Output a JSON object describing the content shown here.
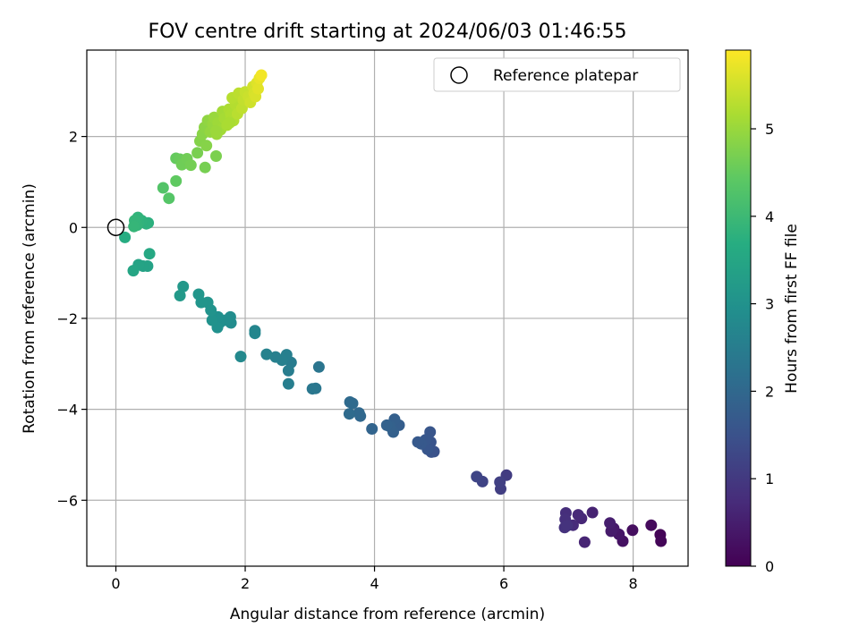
{
  "chart_data": {
    "type": "scatter",
    "title": "FOV centre drift starting at 2024/06/03 01:46:55",
    "xlabel": "Angular distance from reference (arcmin)",
    "ylabel": "Rotation from reference (arcmin)",
    "xlim": [
      -0.45,
      8.85
    ],
    "ylim": [
      -7.45,
      3.9
    ],
    "xticks": [
      0,
      2,
      4,
      6,
      8
    ],
    "yticks": [
      -6,
      -4,
      -2,
      0,
      2
    ],
    "xtick_labels": [
      "0",
      "2",
      "4",
      "6",
      "8"
    ],
    "ytick_labels": [
      "−6",
      "−4",
      "−2",
      "0",
      "2"
    ],
    "grid": true,
    "colorbar": {
      "label": "Hours from first FF file",
      "colormap": "viridis",
      "range": [
        0,
        5.9
      ],
      "ticks": [
        0,
        1,
        2,
        3,
        4,
        5
      ],
      "tick_labels": [
        "0",
        "1",
        "2",
        "3",
        "4",
        "5"
      ]
    },
    "legend": {
      "position": "top-right",
      "entries": [
        {
          "label": "Reference platepar",
          "marker": "open-circle",
          "color": "#000000"
        }
      ]
    },
    "reference_point": {
      "x": 0,
      "y": 0
    },
    "series": [
      {
        "points": [
          [
            8.42,
            -6.76,
            0.05
          ],
          [
            8.43,
            -6.9,
            0.08
          ],
          [
            8.28,
            -6.55,
            0.15
          ],
          [
            7.99,
            -6.66,
            0.22
          ],
          [
            7.84,
            -6.9,
            0.28
          ],
          [
            7.78,
            -6.75,
            0.35
          ],
          [
            7.7,
            -6.62,
            0.4
          ],
          [
            7.66,
            -6.68,
            0.45
          ],
          [
            7.64,
            -6.5,
            0.5
          ],
          [
            7.37,
            -6.27,
            0.58
          ],
          [
            7.25,
            -6.92,
            0.62
          ],
          [
            7.2,
            -6.4,
            0.66
          ],
          [
            7.15,
            -6.32,
            0.7
          ],
          [
            7.07,
            -6.55,
            0.74
          ],
          [
            6.96,
            -6.28,
            0.78
          ],
          [
            6.95,
            -6.42,
            0.82
          ],
          [
            6.94,
            -6.6,
            0.86
          ],
          [
            6.98,
            -6.56,
            0.88
          ],
          [
            6.04,
            -5.45,
            1.05
          ],
          [
            5.95,
            -5.75,
            1.1
          ],
          [
            5.94,
            -5.6,
            1.13
          ],
          [
            5.67,
            -5.59,
            1.2
          ],
          [
            5.58,
            -5.48,
            1.24
          ],
          [
            4.92,
            -4.93,
            1.5
          ],
          [
            4.88,
            -4.94,
            1.52
          ],
          [
            4.87,
            -4.72,
            1.55
          ],
          [
            4.86,
            -4.5,
            1.58
          ],
          [
            4.82,
            -4.88,
            1.6
          ],
          [
            4.79,
            -4.67,
            1.62
          ],
          [
            4.72,
            -4.76,
            1.65
          ],
          [
            4.67,
            -4.72,
            1.67
          ],
          [
            4.38,
            -4.35,
            1.78
          ],
          [
            4.31,
            -4.22,
            1.8
          ],
          [
            4.29,
            -4.5,
            1.82
          ],
          [
            4.24,
            -4.38,
            1.84
          ],
          [
            4.19,
            -4.35,
            1.86
          ],
          [
            3.96,
            -4.43,
            1.92
          ],
          [
            3.78,
            -4.15,
            1.98
          ],
          [
            3.76,
            -4.08,
            2.0
          ],
          [
            3.66,
            -3.87,
            2.04
          ],
          [
            3.62,
            -3.84,
            2.06
          ],
          [
            3.61,
            -4.1,
            2.08
          ],
          [
            3.14,
            -3.07,
            2.3
          ],
          [
            3.09,
            -3.54,
            2.34
          ],
          [
            3.04,
            -3.55,
            2.36
          ],
          [
            2.71,
            -2.97,
            2.48
          ],
          [
            2.67,
            -3.15,
            2.5
          ],
          [
            2.67,
            -3.44,
            2.52
          ],
          [
            2.64,
            -2.8,
            2.54
          ],
          [
            2.57,
            -2.92,
            2.56
          ],
          [
            2.47,
            -2.85,
            2.58
          ],
          [
            2.33,
            -2.79,
            2.62
          ],
          [
            2.15,
            -2.27,
            2.7
          ],
          [
            2.15,
            -2.33,
            2.72
          ],
          [
            1.93,
            -2.84,
            2.78
          ],
          [
            1.78,
            -2.1,
            2.85
          ],
          [
            1.77,
            -1.97,
            2.87
          ],
          [
            1.7,
            -2.04,
            2.9
          ],
          [
            1.61,
            -2.09,
            2.93
          ],
          [
            1.58,
            -1.97,
            2.95
          ],
          [
            1.57,
            -2.2,
            2.97
          ],
          [
            1.49,
            -2.04,
            3.0
          ],
          [
            1.47,
            -1.82,
            3.02
          ],
          [
            1.42,
            -1.65,
            3.05
          ],
          [
            1.32,
            -1.65,
            3.08
          ],
          [
            1.28,
            -1.47,
            3.1
          ],
          [
            1.04,
            -1.3,
            3.15
          ],
          [
            0.99,
            -1.5,
            3.18
          ],
          [
            0.49,
            -0.85,
            3.4
          ],
          [
            0.42,
            -0.85,
            3.42
          ],
          [
            0.35,
            -0.82,
            3.44
          ],
          [
            0.27,
            -0.95,
            3.48
          ],
          [
            0.52,
            -0.58,
            3.55
          ],
          [
            0.14,
            -0.22,
            3.65
          ],
          [
            0.5,
            0.1,
            3.75
          ],
          [
            0.47,
            0.08,
            3.78
          ],
          [
            0.4,
            0.15,
            3.8
          ],
          [
            0.35,
            0.1,
            3.82
          ],
          [
            0.34,
            0.22,
            3.84
          ],
          [
            0.33,
            0.05,
            3.86
          ],
          [
            0.29,
            0.15,
            3.88
          ],
          [
            0.28,
            0.02,
            3.9
          ],
          [
            0.73,
            0.87,
            4.3
          ],
          [
            0.82,
            0.64,
            4.33
          ],
          [
            0.93,
            1.52,
            4.5
          ],
          [
            0.99,
            1.5,
            4.55
          ],
          [
            0.93,
            1.02,
            4.45
          ],
          [
            1.02,
            1.38,
            4.6
          ],
          [
            1.1,
            1.51,
            4.62
          ],
          [
            1.16,
            1.37,
            4.65
          ],
          [
            1.26,
            1.64,
            4.7
          ],
          [
            1.38,
            1.32,
            4.68
          ],
          [
            1.55,
            1.57,
            4.72
          ],
          [
            1.3,
            1.9,
            4.8
          ],
          [
            1.34,
            2.05,
            4.85
          ],
          [
            1.37,
            2.2,
            4.88
          ],
          [
            1.4,
            1.8,
            4.82
          ],
          [
            1.42,
            2.35,
            4.92
          ],
          [
            1.46,
            2.1,
            4.95
          ],
          [
            1.5,
            2.28,
            4.98
          ],
          [
            1.52,
            2.42,
            5.0
          ],
          [
            1.56,
            2.05,
            5.02
          ],
          [
            1.58,
            2.3,
            5.05
          ],
          [
            1.62,
            2.15,
            5.08
          ],
          [
            1.65,
            2.55,
            5.1
          ],
          [
            1.68,
            2.4,
            5.12
          ],
          [
            1.72,
            2.25,
            5.15
          ],
          [
            1.75,
            2.6,
            5.18
          ],
          [
            1.78,
            2.48,
            5.2
          ],
          [
            1.82,
            2.35,
            5.22
          ],
          [
            1.85,
            2.7,
            5.25
          ],
          [
            1.8,
            2.85,
            5.28
          ],
          [
            1.88,
            2.5,
            5.3
          ],
          [
            1.9,
            2.95,
            5.32
          ],
          [
            1.95,
            2.62,
            5.35
          ],
          [
            1.97,
            2.8,
            5.38
          ],
          [
            2.0,
            2.98,
            5.4
          ],
          [
            2.05,
            2.88,
            5.45
          ],
          [
            2.08,
            2.75,
            5.48
          ],
          [
            2.12,
            3.1,
            5.52
          ],
          [
            2.14,
            2.95,
            5.55
          ],
          [
            2.16,
            2.88,
            5.58
          ],
          [
            2.18,
            3.18,
            5.62
          ],
          [
            2.2,
            3.05,
            5.66
          ],
          [
            2.22,
            3.28,
            5.72
          ],
          [
            2.25,
            3.35,
            5.8
          ],
          [
            1.76,
            2.3,
            5.16
          ],
          [
            1.55,
            2.12,
            5.03
          ]
        ]
      }
    ]
  }
}
